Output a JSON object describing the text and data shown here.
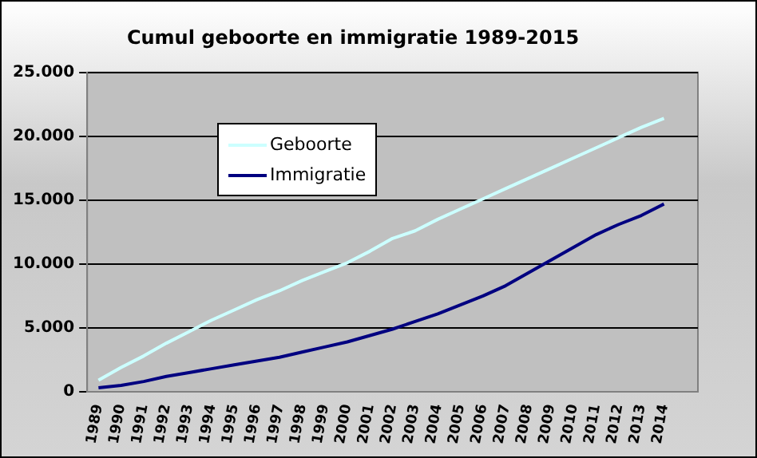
{
  "chart_data": {
    "type": "line",
    "title": "Cumul geboorte en immigratie 1989-2015",
    "categories": [
      "1989",
      "1990",
      "1991",
      "1992",
      "1993",
      "1994",
      "1995",
      "1996",
      "1997",
      "1998",
      "1999",
      "2000",
      "2001",
      "2002",
      "2003",
      "2004",
      "2005",
      "2006",
      "2007",
      "2008",
      "2009",
      "2010",
      "2011",
      "2012",
      "2013",
      "2014",
      null
    ],
    "series": [
      {
        "name": "Geboorte",
        "color": "#ccffff",
        "values": [
          900,
          1900,
          2800,
          3800,
          4700,
          5600,
          6400,
          7200,
          7900,
          8700,
          9400,
          10100,
          11000,
          12000,
          12600,
          13500,
          14300,
          15100,
          15900,
          16700,
          17500,
          18300,
          19100,
          19900,
          20700,
          21400,
          null
        ]
      },
      {
        "name": "Immigratie",
        "color": "#000080",
        "values": [
          300,
          500,
          800,
          1200,
          1500,
          1800,
          2100,
          2400,
          2700,
          3100,
          3500,
          3900,
          4400,
          4900,
          5500,
          6100,
          6800,
          7500,
          8300,
          9300,
          10300,
          11300,
          12300,
          13100,
          13800,
          14700,
          null
        ]
      }
    ],
    "ylim": [
      0,
      25000
    ],
    "yticks": [
      {
        "value": 0,
        "label": "0"
      },
      {
        "value": 5000,
        "label": "5.000"
      },
      {
        "value": 10000,
        "label": "10.000"
      },
      {
        "value": 15000,
        "label": "15.000"
      },
      {
        "value": 20000,
        "label": "20.000"
      },
      {
        "value": 25000,
        "label": "25.000"
      }
    ],
    "grid": "y",
    "legend": "top left",
    "marker": "none",
    "line_style": "solid"
  }
}
